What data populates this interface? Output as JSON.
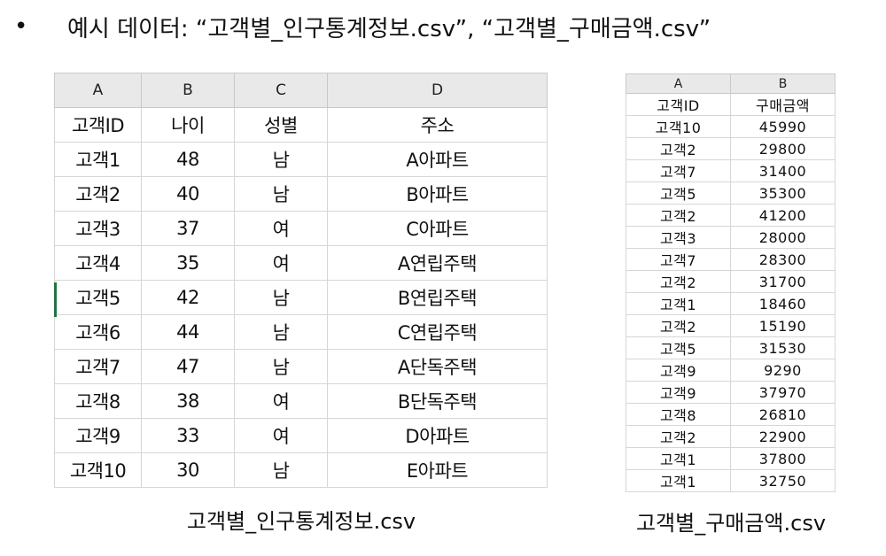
{
  "headline": {
    "bullet": "•",
    "text": "예시 데이터: “고객별_인구통계정보.csv”, “고객별_구매금액.csv”"
  },
  "demographics_sheet": {
    "col_letters": [
      "A",
      "B",
      "C",
      "D"
    ],
    "headers": [
      "고객ID",
      "나이",
      "성별",
      "주소"
    ],
    "rows": [
      [
        "고객1",
        "48",
        "남",
        "A아파트"
      ],
      [
        "고객2",
        "40",
        "남",
        "B아파트"
      ],
      [
        "고객3",
        "37",
        "여",
        "C아파트"
      ],
      [
        "고객4",
        "35",
        "여",
        "A연립주택"
      ],
      [
        "고객5",
        "42",
        "남",
        "B연립주택"
      ],
      [
        "고객6",
        "44",
        "남",
        "C연립주택"
      ],
      [
        "고객7",
        "47",
        "남",
        "A단독주택"
      ],
      [
        "고객8",
        "38",
        "여",
        "B단독주택"
      ],
      [
        "고객9",
        "33",
        "여",
        "D아파트"
      ],
      [
        "고객10",
        "30",
        "남",
        "E아파트"
      ]
    ],
    "caption": "고객별_인구통계정보.csv",
    "accent": "#217346"
  },
  "purchases_sheet": {
    "col_letters": [
      "A",
      "B"
    ],
    "headers": [
      "고객ID",
      "구매금액"
    ],
    "rows": [
      [
        "고객10",
        "45990"
      ],
      [
        "고객2",
        "29800"
      ],
      [
        "고객7",
        "31400"
      ],
      [
        "고객5",
        "35300"
      ],
      [
        "고객2",
        "41200"
      ],
      [
        "고객3",
        "28000"
      ],
      [
        "고객7",
        "28300"
      ],
      [
        "고객2",
        "31700"
      ],
      [
        "고객1",
        "18460"
      ],
      [
        "고객2",
        "15190"
      ],
      [
        "고객5",
        "31530"
      ],
      [
        "고객9",
        "9290"
      ],
      [
        "고객9",
        "37970"
      ],
      [
        "고객8",
        "26810"
      ],
      [
        "고객2",
        "22900"
      ],
      [
        "고객1",
        "37800"
      ],
      [
        "고객1",
        "32750"
      ]
    ],
    "caption": "고객별_구매금액.csv"
  }
}
